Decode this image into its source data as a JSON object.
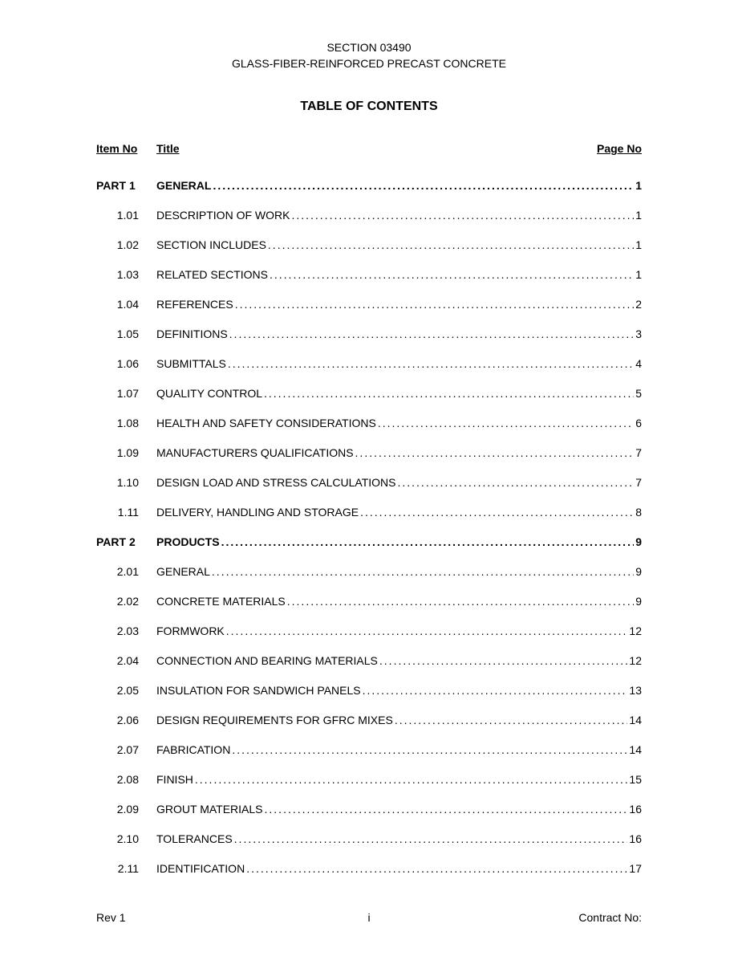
{
  "header": {
    "line1": "SECTION 03490",
    "line2": "GLASS-FIBER-REINFORCED PRECAST CONCRETE"
  },
  "tocTitle": "TABLE OF CONTENTS",
  "columns": {
    "itemNo": "Item No",
    "title": "Title",
    "pageNo": "Page No"
  },
  "entries": [
    {
      "type": "part",
      "num": "PART 1",
      "title": "GENERAL",
      "page": "1"
    },
    {
      "type": "sub",
      "num": "1.01",
      "title": "DESCRIPTION OF WORK",
      "page": "1"
    },
    {
      "type": "sub",
      "num": "1.02",
      "title": "SECTION INCLUDES",
      "page": "1"
    },
    {
      "type": "sub",
      "num": "1.03",
      "title": "RELATED SECTIONS",
      "page": "1"
    },
    {
      "type": "sub",
      "num": "1.04",
      "title": "REFERENCES",
      "page": "2"
    },
    {
      "type": "sub",
      "num": "1.05",
      "title": "DEFINITIONS",
      "page": "3"
    },
    {
      "type": "sub",
      "num": "1.06",
      "title": "SUBMITTALS",
      "page": "4"
    },
    {
      "type": "sub",
      "num": "1.07",
      "title": "QUALITY CONTROL",
      "page": "5"
    },
    {
      "type": "sub",
      "num": "1.08",
      "title": "HEALTH AND SAFETY CONSIDERATIONS",
      "page": "6"
    },
    {
      "type": "sub",
      "num": "1.09",
      "title": "MANUFACTURERS QUALIFICATIONS",
      "page": "7"
    },
    {
      "type": "sub",
      "num": "1.10",
      "title": "DESIGN LOAD AND STRESS CALCULATIONS",
      "page": "7"
    },
    {
      "type": "sub",
      "num": "1.11",
      "title": "DELIVERY, HANDLING AND STORAGE",
      "page": "8"
    },
    {
      "type": "part",
      "num": "PART 2",
      "title": "PRODUCTS",
      "page": "9"
    },
    {
      "type": "sub",
      "num": "2.01",
      "title": "GENERAL",
      "page": "9"
    },
    {
      "type": "sub",
      "num": "2.02",
      "title": "CONCRETE MATERIALS",
      "page": "9"
    },
    {
      "type": "sub",
      "num": "2.03",
      "title": "FORMWORK",
      "page": "12"
    },
    {
      "type": "sub",
      "num": "2.04",
      "title": "CONNECTION AND BEARING MATERIALS",
      "page": "12"
    },
    {
      "type": "sub",
      "num": "2.05",
      "title": "INSULATION FOR SANDWICH PANELS",
      "page": "13"
    },
    {
      "type": "sub",
      "num": "2.06",
      "title": "DESIGN REQUIREMENTS FOR GFRC MIXES",
      "page": "14"
    },
    {
      "type": "sub",
      "num": "2.07",
      "title": "FABRICATION",
      "page": "14"
    },
    {
      "type": "sub",
      "num": "2.08",
      "title": "FINISH",
      "page": "15"
    },
    {
      "type": "sub",
      "num": "2.09",
      "title": "GROUT MATERIALS",
      "page": "16"
    },
    {
      "type": "sub",
      "num": "2.10",
      "title": "TOLERANCES",
      "page": "16"
    },
    {
      "type": "sub",
      "num": "2.11",
      "title": "IDENTIFICATION",
      "page": "17"
    }
  ],
  "footer": {
    "left": "Rev 1",
    "center": "i",
    "right": "Contract No:"
  },
  "style": {
    "background": "#ffffff",
    "textColor": "#000000",
    "fontFamily": "Arial"
  }
}
